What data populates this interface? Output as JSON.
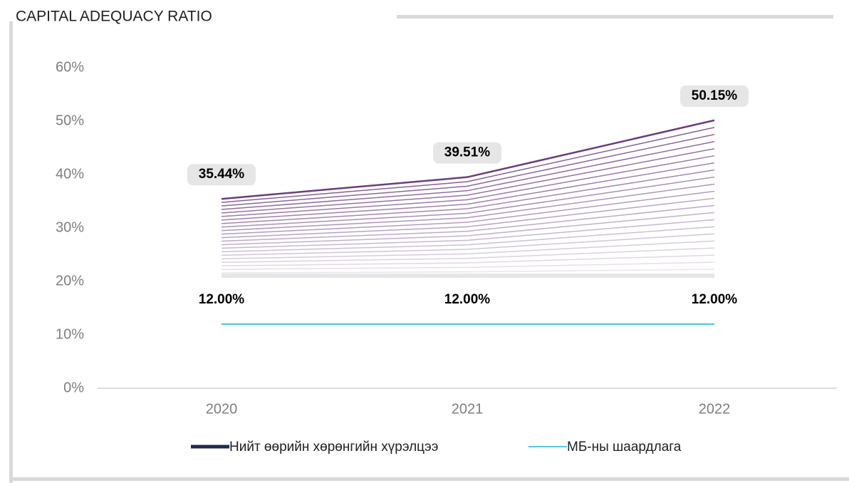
{
  "chart_data": {
    "type": "line",
    "title": "CAPITAL ADEQUACY RATIO",
    "categories": [
      "2020",
      "2021",
      "2022"
    ],
    "series": [
      {
        "name": "Нийт өөрийн хөрөнгийн хүрэлцээ",
        "color": "#1f2a4f",
        "line_color": "#6a3d80",
        "values": [
          35.44,
          39.51,
          50.15
        ],
        "value_labels": [
          "35.44%",
          "39.51%",
          "50.15%"
        ]
      },
      {
        "name": "МБ-ны шаардлага",
        "color": "#5bc8e8",
        "values": [
          12,
          12,
          12
        ],
        "value_labels": [
          "12.00%",
          "12.00%",
          "12.00%"
        ]
      }
    ],
    "ylim": [
      0,
      60
    ],
    "yticks": [
      {
        "value": 0,
        "label": "0%"
      },
      {
        "value": 10,
        "label": "10%"
      },
      {
        "value": 20,
        "label": "20%"
      },
      {
        "value": 30,
        "label": "30%"
      },
      {
        "value": 40,
        "label": "40%"
      },
      {
        "value": 50,
        "label": "50%"
      },
      {
        "value": 60,
        "label": "60%"
      }
    ],
    "grid": false,
    "legend": "bottom"
  }
}
